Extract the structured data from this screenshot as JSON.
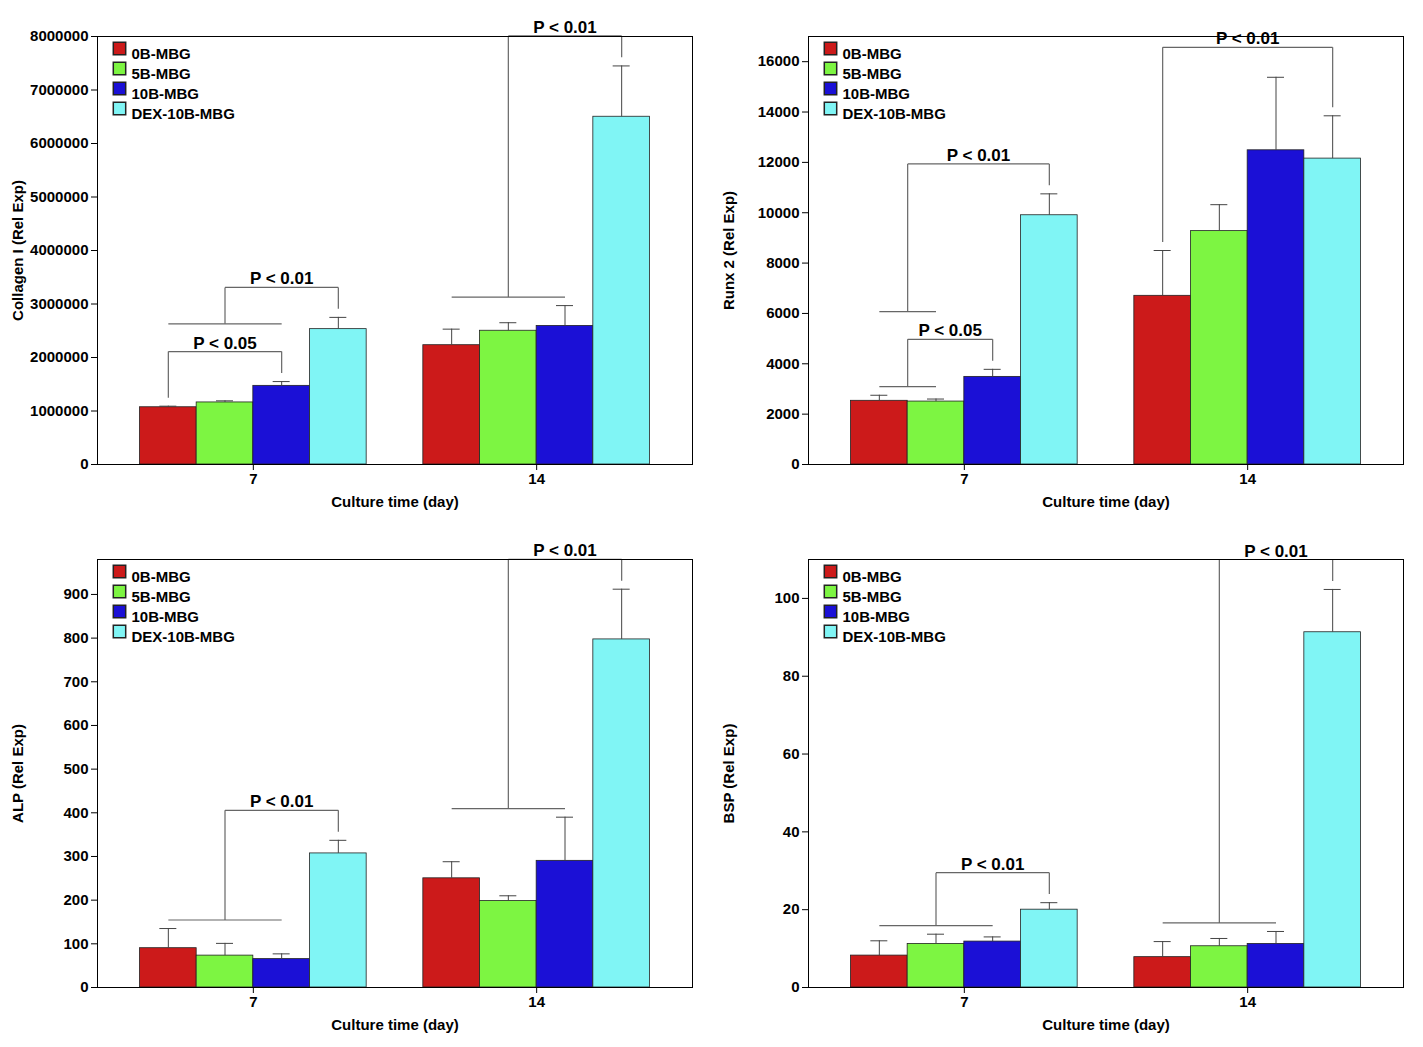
{
  "chart_data": [
    {
      "type": "bar",
      "panel": "a",
      "xlabel": "Culture time (day)",
      "ylabel": "Collagen I (Rel Exp)",
      "categories": [
        "7",
        "14"
      ],
      "series": [
        {
          "name": "0B-MBG",
          "color": "#cc1a1a",
          "values": [
            1070000,
            2230000
          ],
          "errors": [
            20000,
            300000
          ]
        },
        {
          "name": "5B-MBG",
          "color": "#7df542",
          "values": [
            1160000,
            2500000
          ],
          "errors": [
            30000,
            150000
          ]
        },
        {
          "name": "10B-MBG",
          "color": "#1b10d6",
          "values": [
            1470000,
            2590000
          ],
          "errors": [
            80000,
            380000
          ]
        },
        {
          "name": "DEX-10B-MBG",
          "color": "#80f5f5",
          "values": [
            2530000,
            6500000
          ],
          "errors": [
            220000,
            950000
          ]
        }
      ],
      "ylim": [
        0,
        8000000
      ],
      "yticks": [
        0,
        1000000,
        2000000,
        3000000,
        4000000,
        5000000,
        6000000,
        7000000,
        8000000
      ],
      "legend": "top-left",
      "annotations": [
        {
          "text": "P < 0.05",
          "category": "7",
          "from": [
            "0B-MBG"
          ],
          "to": [
            "10B-MBG"
          ]
        },
        {
          "text": "P < 0.01",
          "category": "7",
          "from": [
            "0B-MBG",
            "5B-MBG",
            "10B-MBG"
          ],
          "to": [
            "DEX-10B-MBG"
          ]
        },
        {
          "text": "P < 0.01",
          "category": "14",
          "from": [
            "0B-MBG",
            "5B-MBG",
            "10B-MBG"
          ],
          "to": [
            "DEX-10B-MBG"
          ]
        }
      ]
    },
    {
      "type": "bar",
      "panel": "b",
      "xlabel": "Culture time (day)",
      "ylabel": "Runx 2 (Rel Exp)",
      "categories": [
        "7",
        "14"
      ],
      "series": [
        {
          "name": "0B-MBG",
          "color": "#cc1a1a",
          "values": [
            2530,
            6700
          ],
          "errors": [
            220,
            1800
          ]
        },
        {
          "name": "5B-MBG",
          "color": "#7df542",
          "values": [
            2500,
            9270
          ],
          "errors": [
            100,
            1050
          ]
        },
        {
          "name": "10B-MBG",
          "color": "#1b10d6",
          "values": [
            3480,
            12480
          ],
          "errors": [
            300,
            2900
          ]
        },
        {
          "name": "DEX-10B-MBG",
          "color": "#80f5f5",
          "values": [
            9900,
            12150
          ],
          "errors": [
            850,
            1700
          ]
        }
      ],
      "ylim": [
        0,
        17000
      ],
      "yticks": [
        0,
        2000,
        4000,
        6000,
        8000,
        10000,
        12000,
        14000,
        16000
      ],
      "legend": "top-left",
      "annotations": [
        {
          "text": "P < 0.05",
          "category": "7",
          "from": [
            "0B-MBG",
            "5B-MBG"
          ],
          "to": [
            "10B-MBG"
          ]
        },
        {
          "text": "P < 0.01",
          "category": "7",
          "from": [
            "0B-MBG",
            "5B-MBG"
          ],
          "to": [
            "DEX-10B-MBG"
          ]
        },
        {
          "text": "P < 0.01",
          "category": "14",
          "from": [
            "0B-MBG"
          ],
          "to": [
            "DEX-10B-MBG"
          ]
        }
      ]
    },
    {
      "type": "bar",
      "panel": "c",
      "xlabel": "Culture time (day)",
      "ylabel": "ALP (Rel Exp)",
      "categories": [
        "7",
        "14"
      ],
      "series": [
        {
          "name": "0B-MBG",
          "color": "#cc1a1a",
          "values": [
            90,
            250
          ],
          "errors": [
            45,
            38
          ]
        },
        {
          "name": "5B-MBG",
          "color": "#7df542",
          "values": [
            73,
            198
          ],
          "errors": [
            28,
            12
          ]
        },
        {
          "name": "10B-MBG",
          "color": "#1b10d6",
          "values": [
            65,
            290
          ],
          "errors": [
            12,
            100
          ]
        },
        {
          "name": "DEX-10B-MBG",
          "color": "#80f5f5",
          "values": [
            307,
            797
          ],
          "errors": [
            30,
            115
          ]
        }
      ],
      "ylim": [
        0,
        980
      ],
      "yticks": [
        0,
        100,
        200,
        300,
        400,
        500,
        600,
        700,
        800,
        900
      ],
      "legend": "top-left",
      "annotations": [
        {
          "text": "P < 0.01",
          "category": "7",
          "from": [
            "0B-MBG",
            "5B-MBG",
            "10B-MBG"
          ],
          "to": [
            "DEX-10B-MBG"
          ]
        },
        {
          "text": "P < 0.01",
          "category": "14",
          "from": [
            "0B-MBG",
            "5B-MBG",
            "10B-MBG"
          ],
          "to": [
            "DEX-10B-MBG"
          ]
        }
      ]
    },
    {
      "type": "bar",
      "panel": "d",
      "xlabel": "Culture time (day)",
      "ylabel": "BSP (Rel Exp)",
      "categories": [
        "7",
        "14"
      ],
      "series": [
        {
          "name": "0B-MBG",
          "color": "#cc1a1a",
          "values": [
            8.2,
            7.8
          ],
          "errors": [
            3.8,
            4
          ]
        },
        {
          "name": "5B-MBG",
          "color": "#7df542",
          "values": [
            11.2,
            10.6
          ],
          "errors": [
            2.5,
            2
          ]
        },
        {
          "name": "10B-MBG",
          "color": "#1b10d6",
          "values": [
            11.8,
            11.2
          ],
          "errors": [
            1.2,
            3.2
          ]
        },
        {
          "name": "DEX-10B-MBG",
          "color": "#80f5f5",
          "values": [
            20,
            91.3
          ],
          "errors": [
            1.8,
            11
          ]
        }
      ],
      "ylim": [
        0,
        110
      ],
      "yticks": [
        0,
        20,
        40,
        60,
        80,
        100
      ],
      "legend": "top-left",
      "annotations": [
        {
          "text": "P < 0.01",
          "category": "7",
          "from": [
            "0B-MBG",
            "5B-MBG",
            "10B-MBG"
          ],
          "to": [
            "DEX-10B-MBG"
          ]
        },
        {
          "text": "P < 0.01",
          "category": "14",
          "from": [
            "0B-MBG",
            "5B-MBG",
            "10B-MBG"
          ],
          "to": [
            "DEX-10B-MBG"
          ]
        }
      ]
    }
  ]
}
